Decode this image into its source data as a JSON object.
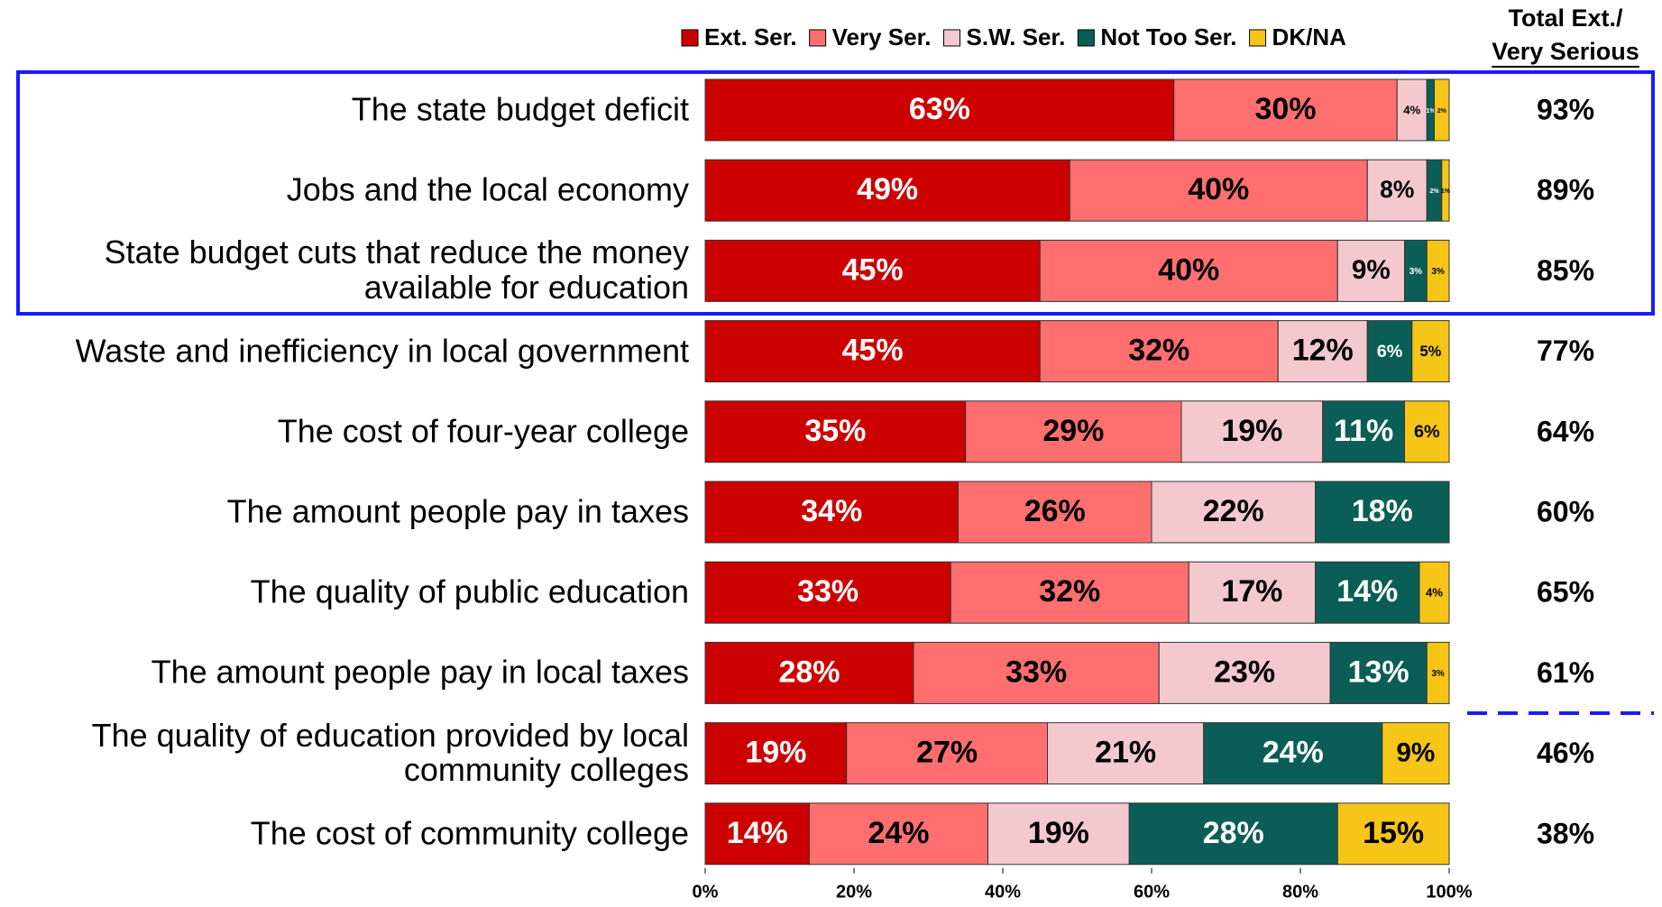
{
  "chart_data": {
    "type": "stacked_bar_horizontal",
    "categories": [
      "The state budget deficit",
      "Jobs and the local economy",
      "State budget cuts that reduce the money\navailable for education",
      "Waste and inefficiency in local government",
      "The cost of four-year college",
      "The amount people pay in taxes",
      "The quality of public education",
      "The amount people pay in local taxes",
      "The quality of education provided by local\ncommunity colleges",
      "The cost of community college"
    ],
    "series": [
      {
        "name": "Ext. Ser.",
        "color": "#cc0000",
        "values": [
          63,
          49,
          45,
          45,
          35,
          34,
          33,
          28,
          19,
          14
        ],
        "value_labels": [
          "63%",
          "49%",
          "45%",
          "45%",
          "35%",
          "34%",
          "33%",
          "28%",
          "19%",
          "14%"
        ]
      },
      {
        "name": "Very Ser.",
        "color": "#ff6f6f",
        "values": [
          30,
          40,
          40,
          32,
          29,
          26,
          32,
          33,
          27,
          24
        ],
        "value_labels": [
          "30%",
          "40%",
          "40%",
          "32%",
          "29%",
          "26%",
          "32%",
          "33%",
          "27%",
          "24%"
        ]
      },
      {
        "name": "S.W. Ser.",
        "color": "#f3c9cd",
        "values": [
          4,
          8,
          9,
          12,
          19,
          22,
          17,
          23,
          21,
          19
        ],
        "value_labels": [
          "4%",
          "8%",
          "9%",
          "12%",
          "19%",
          "22%",
          "17%",
          "23%",
          "21%",
          "19%"
        ]
      },
      {
        "name": "Not Too Ser.",
        "color": "#0b5e55",
        "values": [
          1,
          2,
          3,
          6,
          11,
          18,
          14,
          13,
          24,
          28
        ],
        "value_labels": [
          "1%",
          "2%",
          "3%",
          "6%",
          "11%",
          "18%",
          "14%",
          "13%",
          "24%",
          "28%"
        ]
      },
      {
        "name": "DK/NA",
        "color": "#f5c518",
        "values": [
          2,
          1,
          3,
          5,
          6,
          null,
          4,
          3,
          9,
          15
        ],
        "value_labels": [
          "2%",
          "1%",
          "3%",
          "5%",
          "6%",
          null,
          "4%",
          "3%",
          "9%",
          "15%"
        ]
      }
    ],
    "xlim": [
      0,
      100
    ],
    "xticks": [
      {
        "value": 0,
        "label": "0%"
      },
      {
        "value": 20,
        "label": "20%"
      },
      {
        "value": 40,
        "label": "40%"
      },
      {
        "value": 60,
        "label": "60%"
      },
      {
        "value": 80,
        "label": "80%"
      },
      {
        "value": 100,
        "label": "100%"
      }
    ],
    "legend": "top",
    "totals": {
      "header": [
        "Total Ext./",
        "Very Serious"
      ],
      "labels": [
        "93%",
        "89%",
        "85%",
        "77%",
        "64%",
        "60%",
        "65%",
        "61%",
        "46%",
        "38%"
      ]
    }
  }
}
